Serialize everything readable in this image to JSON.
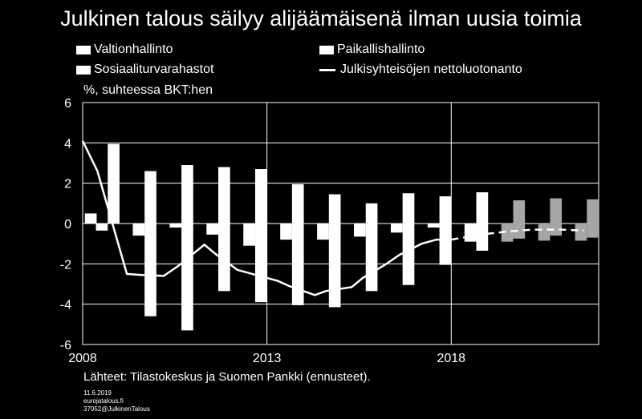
{
  "title": "Julkinen talous säilyy alijäämäisenä ilman uusia toimia",
  "source": "Lähteet: Tilastokeskus ja Suomen Pankki (ennusteet).",
  "meta": {
    "date": "11.6.2019",
    "site": "eurojatalous.fi",
    "code": "37052@JulkinenTalous"
  },
  "colors": {
    "bar": "#ffffff",
    "forecast_bar": "#a6a6a6",
    "line": "#ffffff",
    "background": "#000000"
  },
  "chart_data": {
    "type": "bar",
    "title": "Julkinen talous säilyy alijäämäisenä ilman uusia toimia",
    "ylabel": "%, suhteessa BKT:hen",
    "xlabel": "",
    "ylim": [
      -6,
      6
    ],
    "yticks": [
      -6,
      -4,
      -2,
      0,
      2,
      4,
      6
    ],
    "xtick_labels": [
      {
        "label": "2008",
        "year": 2008
      },
      {
        "label": "2013",
        "year": 2013
      },
      {
        "label": "2018",
        "year": 2018
      }
    ],
    "categories": [
      "2008",
      "2009",
      "2010",
      "2011",
      "2012",
      "2013",
      "2014",
      "2015",
      "2016",
      "2017",
      "2018",
      "2019",
      "2020",
      "2021"
    ],
    "forecast_from": "2019",
    "series": [
      {
        "name": "Valtionhallinto",
        "kind": "bar",
        "values": [
          0.5,
          -4.6,
          -5.3,
          -3.35,
          -3.9,
          -4.05,
          -4.15,
          -3.35,
          -3.05,
          -2.05,
          -1.35,
          -0.75,
          -0.6,
          -0.7
        ]
      },
      {
        "name": "Paikallishallinto",
        "kind": "bar",
        "values": [
          -0.35,
          -0.6,
          -0.2,
          -0.55,
          -1.1,
          -0.8,
          -0.8,
          -0.65,
          -0.45,
          -0.2,
          -0.9,
          -0.9,
          -0.85,
          -0.85
        ]
      },
      {
        "name": "Sosiaaliturvarahastot",
        "kind": "bar",
        "values": [
          3.95,
          2.6,
          2.9,
          2.8,
          2.7,
          1.95,
          1.45,
          1.0,
          1.5,
          1.35,
          1.55,
          1.15,
          1.25,
          1.2
        ]
      },
      {
        "name": "Julkisyhteisöjen nettoluotonanto",
        "kind": "line",
        "x": [
          2008.0,
          2008.4,
          2009.2,
          2009.6,
          2010.2,
          2010.6,
          2011.3,
          2011.6,
          2012.2,
          2012.6,
          2013.3,
          2013.6,
          2014.3,
          2014.6,
          2015.3,
          2015.6,
          2016.2,
          2016.6,
          2017.2,
          2017.6,
          2018.0
        ],
        "values": [
          4.1,
          2.6,
          -2.5,
          -2.55,
          -2.6,
          -2.1,
          -1.05,
          -1.5,
          -2.3,
          -2.5,
          -2.85,
          -3.1,
          -3.55,
          -3.35,
          -3.15,
          -2.7,
          -2.05,
          -1.55,
          -1.0,
          -0.8,
          -0.8
        ],
        "forecast_x": [
          2018.0,
          2018.8,
          2019.5,
          2020.2,
          2021.0,
          2021.6
        ],
        "forecast_values": [
          -0.8,
          -0.55,
          -0.4,
          -0.3,
          -0.3,
          -0.35
        ]
      }
    ],
    "legend": {
      "placement": "top"
    }
  }
}
